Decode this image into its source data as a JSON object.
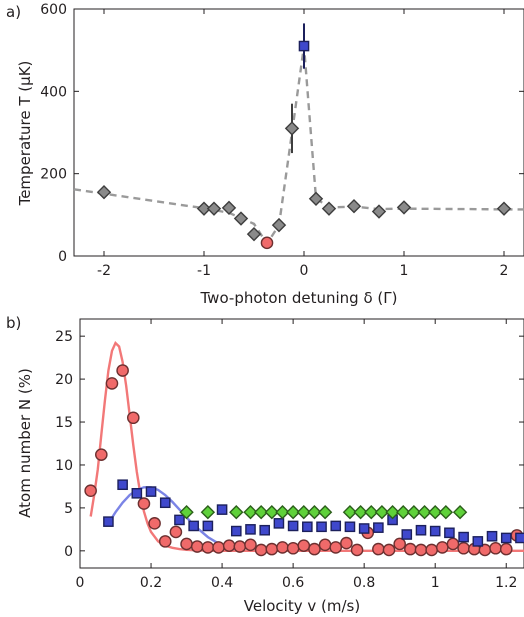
{
  "chart_data": [
    {
      "type": "scatter",
      "panel_label": "a)",
      "xlabel": "Two-photon detuning  δ (Γ)",
      "ylabel": "Temperature T (μK)",
      "xlim": [
        -2.3,
        2.2
      ],
      "ylim": [
        0,
        600
      ],
      "xticks": [
        -2,
        -1,
        0,
        1,
        2
      ],
      "yticks": [
        0,
        200,
        400,
        600
      ],
      "xtick_labels": [
        "-2",
        "-1",
        "0",
        "1",
        "2"
      ],
      "ytick_labels": [
        "0",
        "200",
        "400",
        "600"
      ],
      "grid": false,
      "dashed_line": {
        "color": "#9a9a9a",
        "points": [
          [
            -2.3,
            162
          ],
          [
            -1.0,
            116
          ],
          [
            -0.75,
            105
          ],
          [
            -0.5,
            78
          ],
          [
            -0.37,
            30
          ],
          [
            -0.25,
            75
          ],
          [
            -0.12,
            300
          ],
          [
            0,
            510
          ],
          [
            0.12,
            140
          ],
          [
            0.25,
            118
          ],
          [
            0.5,
            120
          ],
          [
            0.75,
            114
          ],
          [
            1.0,
            115
          ],
          [
            2.2,
            113
          ]
        ]
      },
      "series": [
        {
          "marker": "diamond",
          "color": "#8a8a8a",
          "x": [
            -2.0,
            -1.0,
            -0.9,
            -0.75,
            -0.63,
            -0.5,
            -0.25,
            -0.12,
            0.12,
            0.25,
            0.5,
            0.75,
            1.0,
            2.0
          ],
          "y": [
            155,
            115,
            115,
            117,
            91,
            53,
            75,
            310,
            139,
            115,
            121,
            108,
            118,
            115
          ],
          "yerr": [
            0,
            0,
            0,
            0,
            0,
            0,
            0,
            60,
            0,
            0,
            0,
            0,
            0,
            0
          ]
        },
        {
          "marker": "square",
          "color": "#3f48cc",
          "x": [
            0.0
          ],
          "y": [
            510
          ],
          "yerr": [
            55
          ]
        },
        {
          "marker": "circle",
          "color": "#f06a6a",
          "x": [
            -0.37
          ],
          "y": [
            32
          ],
          "yerr": [
            0
          ]
        }
      ]
    },
    {
      "type": "scatter",
      "panel_label": "b)",
      "xlabel": "Velocity  v (m/s)",
      "ylabel": "Atom number N  (%)",
      "xlim": [
        0,
        1.25
      ],
      "ylim": [
        -2,
        27
      ],
      "xticks": [
        0,
        0.2,
        0.4,
        0.6,
        0.8,
        1.0,
        1.2
      ],
      "yticks": [
        0,
        5,
        10,
        15,
        20,
        25
      ],
      "xtick_labels": [
        "0",
        "0.2",
        "0.4",
        "0.6",
        "0.8",
        "1",
        "1.2"
      ],
      "ytick_labels": [
        "0",
        "5",
        "10",
        "15",
        "20",
        "25"
      ],
      "grid": false,
      "curves": [
        {
          "color": "#f27878",
          "x": [
            0.03,
            0.04,
            0.05,
            0.06,
            0.07,
            0.08,
            0.09,
            0.1,
            0.11,
            0.12,
            0.13,
            0.14,
            0.15,
            0.16,
            0.17,
            0.18,
            0.19,
            0.2,
            0.22,
            0.24,
            0.26,
            0.28,
            0.3,
            0.33,
            0.36,
            0.4,
            0.5,
            0.7,
            1.0,
            1.25
          ],
          "y": [
            4,
            6.5,
            9.5,
            13.5,
            17.5,
            21,
            23.3,
            24.2,
            23.8,
            22,
            19.2,
            15.8,
            12.3,
            9.2,
            6.6,
            4.6,
            3.2,
            2.2,
            1.1,
            0.6,
            0.35,
            0.2,
            0.12,
            0.05,
            0.02,
            0,
            0,
            0,
            0,
            0
          ]
        },
        {
          "color": "#7b84e6",
          "x": [
            0.08,
            0.1,
            0.12,
            0.14,
            0.16,
            0.18,
            0.2,
            0.22,
            0.24,
            0.26,
            0.28,
            0.3,
            0.32,
            0.34,
            0.36,
            0.38,
            0.4,
            0.42,
            0.44
          ],
          "y": [
            3.2,
            4.5,
            5.6,
            6.5,
            7.1,
            7.4,
            7.4,
            7.1,
            6.5,
            5.7,
            4.8,
            3.9,
            3.0,
            2.3,
            1.6,
            1.1,
            0.7,
            0.4,
            0.2
          ]
        }
      ],
      "series": [
        {
          "marker": "circle",
          "color": "#f06a6a",
          "x": [
            0.03,
            0.06,
            0.09,
            0.12,
            0.15,
            0.18,
            0.21,
            0.24,
            0.27,
            0.3,
            0.33,
            0.36,
            0.39,
            0.42,
            0.45,
            0.48,
            0.51,
            0.54,
            0.57,
            0.6,
            0.63,
            0.66,
            0.69,
            0.72,
            0.75,
            0.78,
            0.81,
            0.84,
            0.87,
            0.9,
            0.93,
            0.96,
            0.99,
            1.02,
            1.05,
            1.08,
            1.11,
            1.14,
            1.17,
            1.2,
            1.23
          ],
          "y": [
            7,
            11.2,
            19.5,
            21,
            15.5,
            5.5,
            3.2,
            1.1,
            2.2,
            0.8,
            0.5,
            0.4,
            0.4,
            0.6,
            0.5,
            0.7,
            0.1,
            0.2,
            0.4,
            0.3,
            0.6,
            0.2,
            0.7,
            0.4,
            0.9,
            0.1,
            2.1,
            0.2,
            0.1,
            0.8,
            0.2,
            0.1,
            0.1,
            0.4,
            0.8,
            0.3,
            0.2,
            0.1,
            0.3,
            0.2,
            1.8
          ]
        },
        {
          "marker": "square",
          "color": "#3f48cc",
          "x": [
            0.08,
            0.12,
            0.16,
            0.2,
            0.24,
            0.28,
            0.32,
            0.36,
            0.4,
            0.44,
            0.48,
            0.52,
            0.56,
            0.6,
            0.64,
            0.68,
            0.72,
            0.76,
            0.8,
            0.84,
            0.88,
            0.92,
            0.96,
            1.0,
            1.04,
            1.08,
            1.12,
            1.16,
            1.2,
            1.24
          ],
          "y": [
            3.4,
            7.7,
            6.7,
            6.9,
            5.6,
            3.6,
            2.9,
            2.9,
            4.8,
            2.3,
            2.5,
            2.4,
            3.2,
            2.9,
            2.8,
            2.8,
            2.9,
            2.8,
            2.6,
            2.7,
            3.6,
            1.9,
            2.4,
            2.3,
            2.1,
            1.6,
            1.1,
            1.7,
            1.5,
            1.5
          ]
        },
        {
          "marker": "diamond",
          "color": "#5fd13a",
          "x": [
            0.3,
            0.36,
            0.44,
            0.48,
            0.51,
            0.54,
            0.57,
            0.6,
            0.63,
            0.66,
            0.69,
            0.76,
            0.79,
            0.82,
            0.85,
            0.88,
            0.91,
            0.94,
            0.97,
            1.0,
            1.03,
            1.07
          ],
          "y": [
            4.5,
            4.5,
            4.5,
            4.5,
            4.5,
            4.5,
            4.5,
            4.5,
            4.5,
            4.5,
            4.5,
            4.5,
            4.5,
            4.5,
            4.5,
            4.5,
            4.5,
            4.5,
            4.5,
            4.5,
            4.5,
            4.5
          ]
        }
      ]
    }
  ]
}
